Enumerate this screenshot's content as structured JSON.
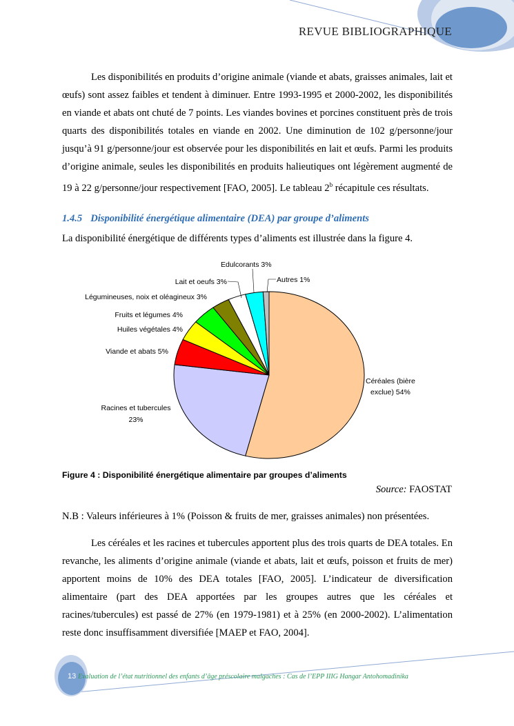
{
  "header": {
    "title": "REVUE BIBLIOGRAPHIQUE"
  },
  "paragraph1": "Les disponibilités en produits d’origine animale (viande et abats, graisses animales, lait et œufs) sont assez faibles et tendent à diminuer. Entre 1993-1995 et 2000-2002, les disponibilités en viande et abats ont chuté de 7 points. Les viandes bovines et porcines constituent près de trois quarts des disponibilités totales en viande en 2002. Une diminution de 102 g/personne/jour jusqu’à 91 g/personne/jour est observée pour les disponibilités en lait et œufs. Parmi les produits d’origine animale, seules les disponibilités en produits halieutiques ont légèrement augmenté de 19 à 22 g/personne/jour respectivement [FAO, 2005]. Le tableau",
  "paragraph1_end": {
    "pre": "2",
    "sup": "b",
    "post": " récapitule ces résultats."
  },
  "section": {
    "number": "1.4.5",
    "title": "Disponibilité énergétique alimentaire (DEA) par groupe d’aliments"
  },
  "intro": "La disponibilité énergétique de différents types d’aliments est illustrée dans la figure 4.",
  "chart_data": {
    "type": "pie",
    "start": "top",
    "direction": "clockwise",
    "slices": [
      {
        "label": "Céréales (bière exclue)",
        "line1": "Céréales (bière",
        "line2": "exclue)  54%",
        "value": 54,
        "color": "#FFCC99"
      },
      {
        "label": "Racines et tubercules",
        "line1": "Racines et tubercules",
        "line2": "23%",
        "value": 23,
        "color": "#CCCCFF"
      },
      {
        "label": "Viande et abats",
        "line1": "Viande et abats  5%",
        "value": 5,
        "color": "#FF0000"
      },
      {
        "label": "Huiles végétales",
        "line1": "Huiles végétales  4%",
        "value": 4,
        "color": "#FFFF00"
      },
      {
        "label": "Fruits et légumes",
        "line1": "Fruits et légumes  4%",
        "value": 4,
        "color": "#00FF00"
      },
      {
        "label": "Légumineuses, noix et oléagineux",
        "line1": "Légumineuses, noix et oléagineux 3%",
        "value": 3,
        "color": "#808000"
      },
      {
        "label": "Lait et oeufs",
        "line1": "Lait et oeufs  3%",
        "value": 3,
        "color": "#FFFFFF"
      },
      {
        "label": "Edulcorants",
        "line1": "Edulcorants 3%",
        "value": 3,
        "color": "#00FFFF"
      },
      {
        "label": "Autres",
        "line1": "Autres  1%",
        "value": 1,
        "color": "#C0C0C0"
      }
    ]
  },
  "figure": {
    "caption": "Figure 4 : Disponibilité énergétique alimentaire par groupes d’aliments",
    "source_label": "Source:",
    "source_value": " FAOSTAT"
  },
  "note": "N.B : Valeurs inférieures à 1% (Poisson & fruits de mer, graisses animales) non présentées.",
  "paragraph2": "Les céréales et les racines et tubercules apportent plus des trois quarts de DEA totales. En revanche, les aliments d’origine animale (viande et abats, lait et œufs, poisson et fruits de mer) apportent moins de 10% des DEA totales [FAO, 2005]. L’indicateur de diversification alimentaire (part des DEA apportées par les groupes autres que les céréales et racines/tubercules) est passé de 27% (en 1979-1981) et à 25% (en 2000-2002). L’alimentation reste donc insuffisamment diversifiée [MAEP et  FAO, 2004].",
  "footer": {
    "page_number": "13",
    "text": "Evaluation de l’état nutritionnel des enfants d’âge préscolaire malgaches : Cas de l’EPP IIIG Hangar Antohomadinika"
  }
}
